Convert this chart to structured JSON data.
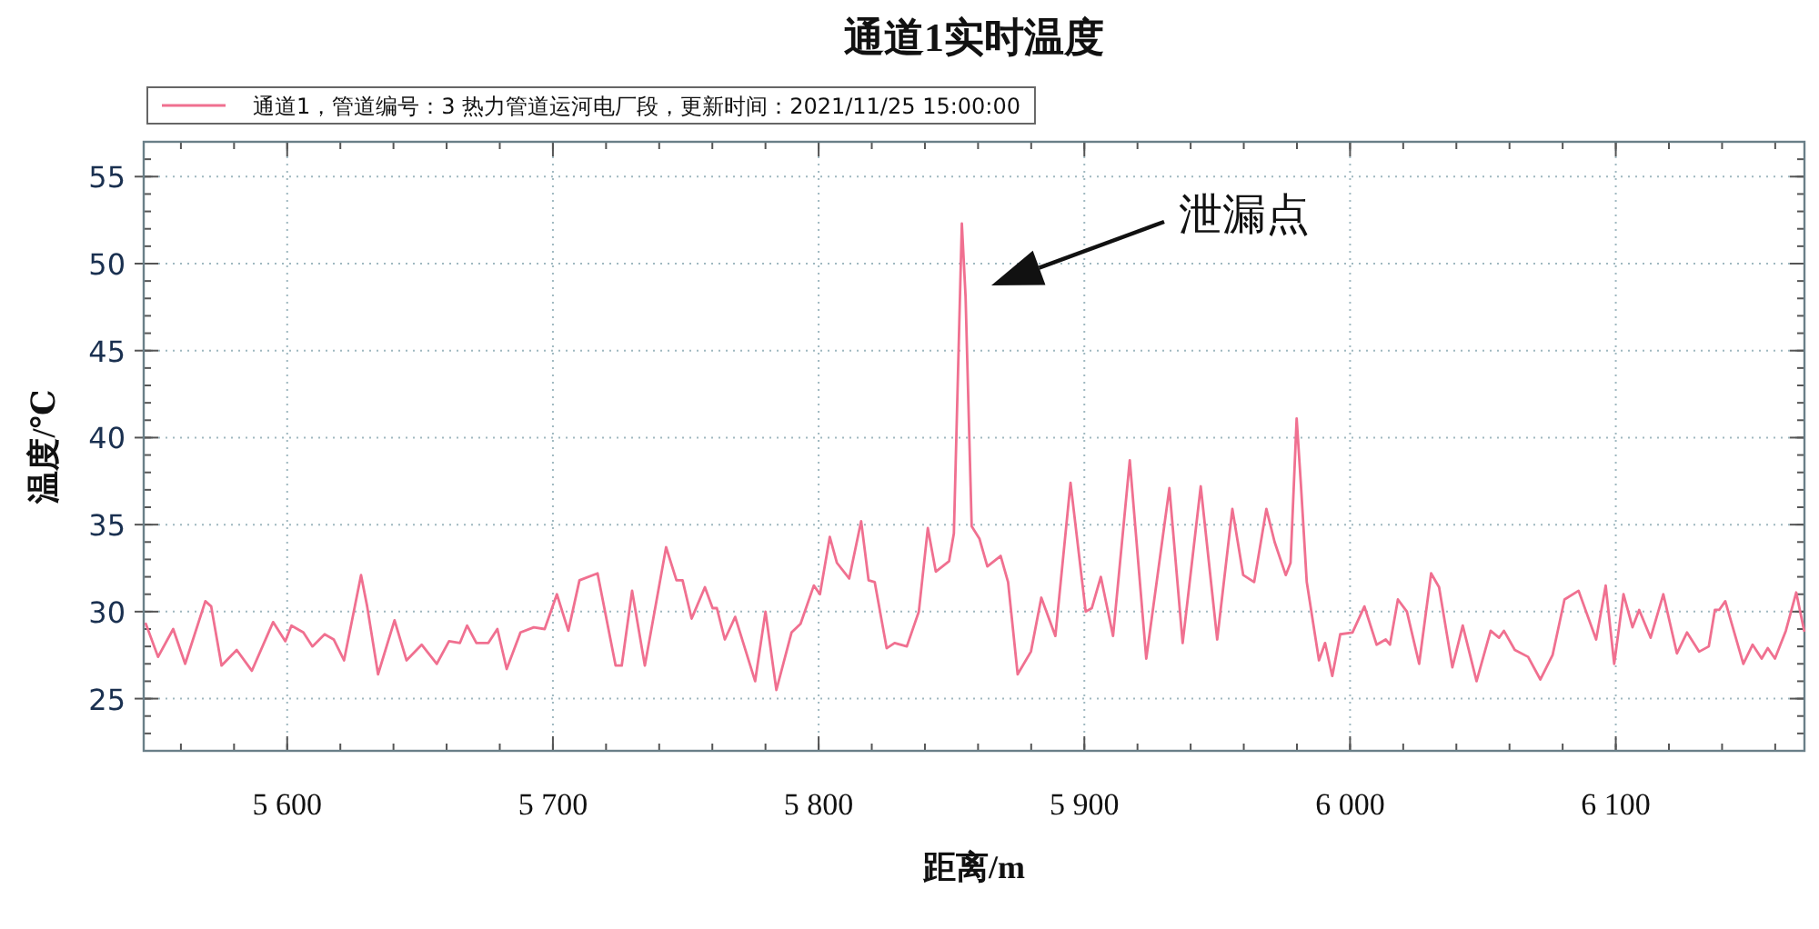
{
  "chart_data": {
    "type": "line",
    "title": "通道1实时温度",
    "xlabel": "距离/m",
    "ylabel": "温度/℃",
    "x": [
      5546.8,
      5551.4,
      5557.1,
      5561.6,
      5569.2,
      5571.4,
      5575.3,
      5581.0,
      5586.7,
      5594.7,
      5599.3,
      5601.6,
      5606.1,
      5609.5,
      5614.1,
      5617.5,
      5621.4,
      5627.8,
      5630.1,
      5634.2,
      5640.4,
      5644.9,
      5650.6,
      5656.3,
      5660.9,
      5665.0,
      5667.7,
      5671.2,
      5675.7,
      5679.1,
      5682.6,
      5687.8,
      5692.8,
      5696.9,
      5701.5,
      5705.8,
      5710.0,
      5716.8,
      5723.6,
      5725.9,
      5729.8,
      5734.6,
      5742.6,
      5746.5,
      5748.8,
      5752.2,
      5757.2,
      5760.1,
      5761.7,
      5764.7,
      5768.6,
      5776.1,
      5780.0,
      5784.1,
      5789.8,
      5793.2,
      5798.2,
      5800.5,
      5804.2,
      5806.9,
      5811.5,
      5816.0,
      5818.8,
      5821.1,
      5825.6,
      5828.6,
      5833.2,
      5837.7,
      5841.1,
      5844.1,
      5849.1,
      5850.9,
      5853.9,
      5855.3,
      5857.6,
      5860.5,
      5863.5,
      5868.5,
      5871.3,
      5874.9,
      5879.9,
      5883.8,
      5889.1,
      5894.8,
      5900.5,
      5902.8,
      5906.2,
      5910.8,
      5917.1,
      5923.3,
      5932.0,
      5937.0,
      5943.8,
      5950.0,
      5955.7,
      5959.8,
      5963.9,
      5968.5,
      5971.6,
      5975.8,
      5977.6,
      5979.9,
      5981.5,
      5983.7,
      5988.3,
      5990.6,
      5993.3,
      5996.3,
      6000.9,
      6005.4,
      6010.0,
      6013.4,
      6015.0,
      6018.0,
      6021.4,
      6026.0,
      6030.5,
      6033.5,
      6038.5,
      6042.4,
      6047.6,
      6052.9,
      6056.1,
      6057.9,
      6062.0,
      6067.0,
      6071.6,
      6076.2,
      6080.7,
      6086.0,
      6092.6,
      6096.2,
      6099.4,
      6102.9,
      6106.3,
      6108.8,
      6113.1,
      6117.9,
      6123.0,
      6126.8,
      6131.4,
      6135.0,
      6137.3,
      6138.9,
      6141.2,
      6148.0,
      6151.5,
      6154.9,
      6157.2,
      6159.9,
      6164.0,
      6167.9,
      6170.9
    ],
    "series": [
      {
        "name": "通道1，管道编号：3 热力管道运河电厂段，更新时间：2021/11/25 15:00:00",
        "color": "#f07090",
        "values": [
          29.3,
          27.4,
          29.0,
          27.0,
          30.6,
          30.3,
          26.9,
          27.8,
          26.6,
          29.4,
          28.3,
          29.2,
          28.8,
          28.0,
          28.7,
          28.4,
          27.2,
          32.1,
          30.3,
          26.4,
          29.5,
          27.2,
          28.1,
          27.0,
          28.3,
          28.2,
          29.2,
          28.2,
          28.2,
          29.0,
          26.7,
          28.8,
          29.1,
          29.0,
          31.0,
          28.9,
          31.8,
          32.2,
          26.9,
          26.9,
          31.2,
          26.9,
          33.7,
          31.8,
          31.8,
          29.6,
          31.4,
          30.2,
          30.2,
          28.4,
          29.7,
          26.0,
          30.0,
          25.5,
          28.8,
          29.3,
          31.5,
          31.0,
          34.3,
          32.8,
          31.9,
          35.2,
          31.8,
          31.7,
          27.9,
          28.2,
          28.0,
          30.0,
          34.8,
          32.3,
          32.9,
          34.5,
          52.3,
          48.1,
          34.9,
          34.2,
          32.6,
          33.2,
          31.7,
          26.4,
          27.7,
          30.8,
          28.6,
          37.4,
          30.0,
          30.2,
          32.0,
          28.6,
          38.7,
          27.3,
          37.1,
          28.2,
          37.2,
          28.4,
          35.9,
          32.1,
          31.7,
          35.9,
          34.0,
          32.1,
          32.8,
          41.1,
          37.3,
          31.7,
          27.2,
          28.2,
          26.3,
          28.7,
          28.8,
          30.3,
          28.1,
          28.4,
          28.1,
          30.7,
          30.0,
          27.0,
          32.2,
          31.4,
          26.8,
          29.2,
          26.0,
          28.9,
          28.5,
          28.9,
          27.8,
          27.4,
          26.1,
          27.5,
          30.7,
          31.2,
          28.4,
          31.5,
          27.0,
          31.0,
          29.1,
          30.1,
          28.5,
          31.0,
          27.6,
          28.8,
          27.7,
          28.0,
          30.1,
          30.1,
          30.6,
          27.0,
          28.1,
          27.3,
          27.9,
          27.3,
          28.9,
          31.1,
          28.9
        ]
      }
    ],
    "xlim": [
      5546,
      6171
    ],
    "ylim": [
      22,
      57
    ],
    "xticks": [
      {
        "value": 5600,
        "label": "5 600"
      },
      {
        "value": 5700,
        "label": "5 700"
      },
      {
        "value": 5800,
        "label": "5 800"
      },
      {
        "value": 5900,
        "label": "5 900"
      },
      {
        "value": 6000,
        "label": "6 000"
      },
      {
        "value": 6100,
        "label": "6 100"
      }
    ],
    "yticks": [
      25,
      30,
      35,
      40,
      45,
      50,
      55
    ],
    "annotations": [
      "泄漏点"
    ],
    "grid": true,
    "legend": "top left"
  }
}
